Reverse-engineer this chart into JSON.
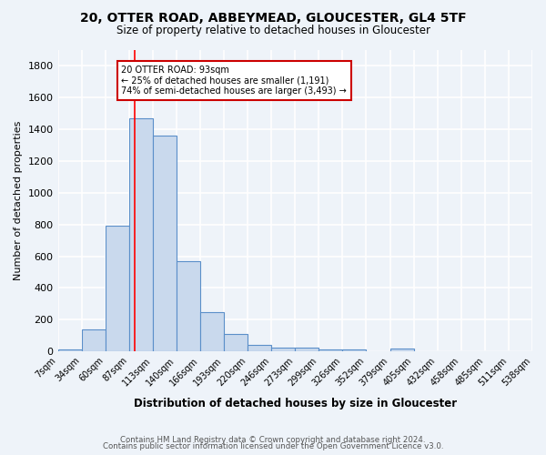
{
  "title_line1": "20, OTTER ROAD, ABBEYMEAD, GLOUCESTER, GL4 5TF",
  "title_line2": "Size of property relative to detached houses in Gloucester",
  "xlabel": "Distribution of detached houses by size in Gloucester",
  "ylabel": "Number of detached properties",
  "footnote1": "Contains HM Land Registry data © Crown copyright and database right 2024.",
  "footnote2": "Contains public sector information licensed under the Open Government Licence v3.0.",
  "bin_labels": [
    "7sqm",
    "34sqm",
    "60sqm",
    "87sqm",
    "113sqm",
    "140sqm",
    "166sqm",
    "193sqm",
    "220sqm",
    "246sqm",
    "273sqm",
    "299sqm",
    "326sqm",
    "352sqm",
    "379sqm",
    "405sqm",
    "432sqm",
    "458sqm",
    "485sqm",
    "511sqm",
    "538sqm"
  ],
  "bar_values": [
    15,
    140,
    790,
    1470,
    1360,
    570,
    245,
    110,
    40,
    25,
    25,
    15,
    15,
    0,
    20,
    0,
    0,
    0,
    0,
    0
  ],
  "bar_color": "#c9d9ed",
  "bar_edge_color": "#5b8fc9",
  "background_color": "#eef3f9",
  "grid_color": "#ffffff",
  "red_line_x": 3.23,
  "annotation_line1": "20 OTTER ROAD: 93sqm",
  "annotation_line2": "← 25% of detached houses are smaller (1,191)",
  "annotation_line3": "74% of semi-detached houses are larger (3,493) →",
  "annotation_box_color": "#ffffff",
  "annotation_box_edge": "#cc0000",
  "ylim_max": 1900,
  "yticks": [
    0,
    200,
    400,
    600,
    800,
    1000,
    1200,
    1400,
    1600,
    1800
  ]
}
